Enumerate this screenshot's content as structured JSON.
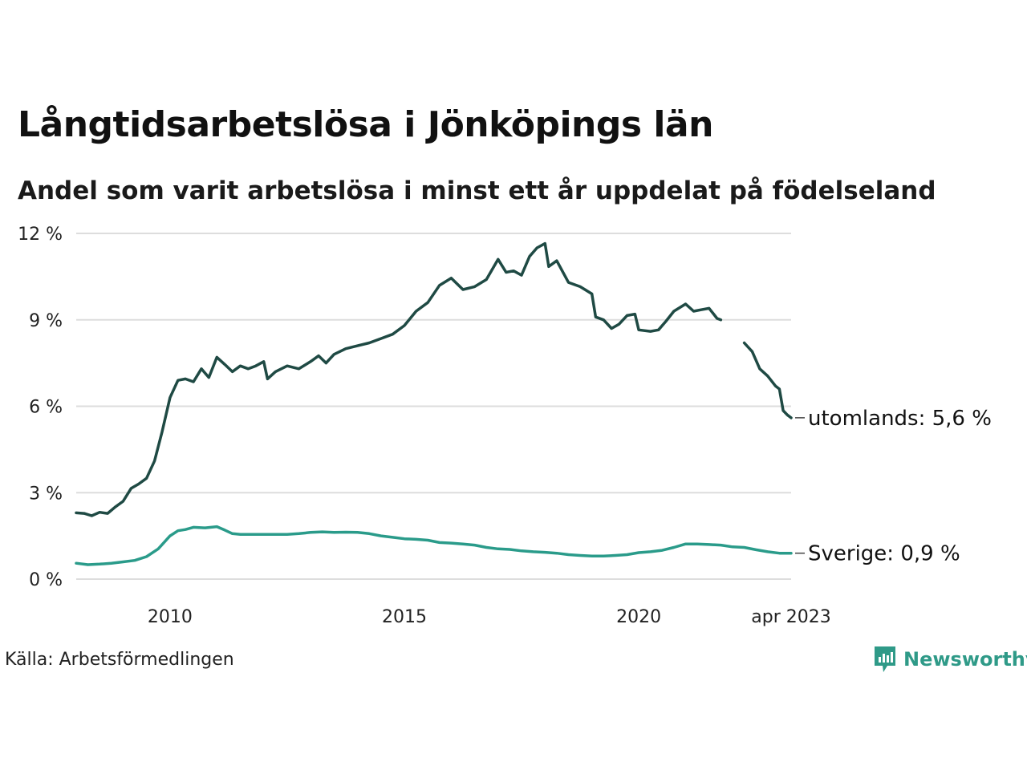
{
  "title": "Långtidsarbetslösa i Jönköpings län",
  "subtitle": "Andel som varit arbetslösa i minst ett år uppdelat på födelseland",
  "source": "Källa: Arbetsförmedlingen",
  "brand": {
    "name": "Newsworthy",
    "icon": "newsworthy-logo-icon",
    "color": "#2f9a88"
  },
  "chart_data": {
    "type": "line",
    "title": "Långtidsarbetslösa i Jönköpings län",
    "subtitle": "Andel som varit arbetslösa i minst ett år uppdelat på födelseland",
    "ylim": [
      0,
      12
    ],
    "yticks": [
      0,
      3,
      6,
      9,
      12
    ],
    "ytick_labels": [
      "0 %",
      "3 %",
      "6 %",
      "9 %",
      "12 %"
    ],
    "xlim": [
      2008.0,
      2023.25
    ],
    "xticks": [
      2010,
      2015,
      2020,
      2023.25
    ],
    "xtick_labels": [
      "2010",
      "2015",
      "2020",
      "apr 2023"
    ],
    "grid": true,
    "series": [
      {
        "name": "utomlands",
        "end_label": "utomlands: 5,6 %",
        "color": "#1f4a44",
        "points": [
          [
            2008.0,
            2.3
          ],
          [
            2008.17,
            2.28
          ],
          [
            2008.33,
            2.2
          ],
          [
            2008.5,
            2.32
          ],
          [
            2008.67,
            2.28
          ],
          [
            2008.83,
            2.5
          ],
          [
            2009.0,
            2.7
          ],
          [
            2009.17,
            3.15
          ],
          [
            2009.33,
            3.3
          ],
          [
            2009.5,
            3.5
          ],
          [
            2009.67,
            4.1
          ],
          [
            2009.83,
            5.1
          ],
          [
            2010.0,
            6.3
          ],
          [
            2010.17,
            6.9
          ],
          [
            2010.33,
            6.95
          ],
          [
            2010.5,
            6.85
          ],
          [
            2010.67,
            7.3
          ],
          [
            2010.83,
            7.0
          ],
          [
            2011.0,
            7.7
          ],
          [
            2011.17,
            7.45
          ],
          [
            2011.33,
            7.2
          ],
          [
            2011.5,
            7.4
          ],
          [
            2011.67,
            7.3
          ],
          [
            2011.83,
            7.4
          ],
          [
            2012.0,
            7.55
          ],
          [
            2012.08,
            6.95
          ],
          [
            2012.25,
            7.2
          ],
          [
            2012.5,
            7.4
          ],
          [
            2012.75,
            7.3
          ],
          [
            2013.0,
            7.55
          ],
          [
            2013.17,
            7.75
          ],
          [
            2013.33,
            7.5
          ],
          [
            2013.5,
            7.8
          ],
          [
            2013.75,
            8.0
          ],
          [
            2014.0,
            8.1
          ],
          [
            2014.25,
            8.2
          ],
          [
            2014.5,
            8.35
          ],
          [
            2014.75,
            8.5
          ],
          [
            2015.0,
            8.8
          ],
          [
            2015.25,
            9.3
          ],
          [
            2015.5,
            9.6
          ],
          [
            2015.75,
            10.2
          ],
          [
            2016.0,
            10.45
          ],
          [
            2016.25,
            10.05
          ],
          [
            2016.5,
            10.15
          ],
          [
            2016.75,
            10.4
          ],
          [
            2017.0,
            11.1
          ],
          [
            2017.17,
            10.65
          ],
          [
            2017.33,
            10.7
          ],
          [
            2017.5,
            10.55
          ],
          [
            2017.67,
            11.2
          ],
          [
            2017.83,
            11.5
          ],
          [
            2018.0,
            11.65
          ],
          [
            2018.08,
            10.85
          ],
          [
            2018.25,
            11.05
          ],
          [
            2018.5,
            10.3
          ],
          [
            2018.75,
            10.15
          ],
          [
            2019.0,
            9.9
          ],
          [
            2019.08,
            9.1
          ],
          [
            2019.25,
            9.0
          ],
          [
            2019.42,
            8.7
          ],
          [
            2019.58,
            8.85
          ],
          [
            2019.75,
            9.15
          ],
          [
            2019.92,
            9.2
          ],
          [
            2020.0,
            8.65
          ],
          [
            2020.25,
            8.6
          ],
          [
            2020.42,
            8.65
          ],
          [
            2020.58,
            8.95
          ],
          [
            2020.75,
            9.3
          ],
          [
            2021.0,
            9.55
          ],
          [
            2021.17,
            9.3
          ],
          [
            2021.33,
            9.35
          ],
          [
            2021.5,
            9.4
          ],
          [
            2021.67,
            9.05
          ],
          [
            2021.75,
            9.0
          ],
          null,
          [
            2022.25,
            8.2
          ],
          [
            2022.42,
            7.9
          ],
          [
            2022.58,
            7.3
          ],
          [
            2022.75,
            7.05
          ],
          [
            2022.92,
            6.7
          ],
          [
            2023.0,
            6.6
          ],
          [
            2023.08,
            5.85
          ],
          [
            2023.17,
            5.7
          ],
          [
            2023.25,
            5.6
          ]
        ]
      },
      {
        "name": "Sverige",
        "end_label": "Sverige: 0,9 %",
        "color": "#2a9b8a",
        "points": [
          [
            2008.0,
            0.55
          ],
          [
            2008.25,
            0.5
          ],
          [
            2008.5,
            0.52
          ],
          [
            2008.75,
            0.55
          ],
          [
            2009.0,
            0.6
          ],
          [
            2009.25,
            0.65
          ],
          [
            2009.5,
            0.78
          ],
          [
            2009.75,
            1.05
          ],
          [
            2010.0,
            1.5
          ],
          [
            2010.17,
            1.68
          ],
          [
            2010.33,
            1.72
          ],
          [
            2010.5,
            1.8
          ],
          [
            2010.75,
            1.78
          ],
          [
            2011.0,
            1.82
          ],
          [
            2011.17,
            1.7
          ],
          [
            2011.33,
            1.58
          ],
          [
            2011.5,
            1.55
          ],
          [
            2011.75,
            1.55
          ],
          [
            2012.0,
            1.55
          ],
          [
            2012.25,
            1.55
          ],
          [
            2012.5,
            1.55
          ],
          [
            2012.75,
            1.58
          ],
          [
            2013.0,
            1.62
          ],
          [
            2013.25,
            1.64
          ],
          [
            2013.5,
            1.62
          ],
          [
            2013.75,
            1.63
          ],
          [
            2014.0,
            1.62
          ],
          [
            2014.25,
            1.58
          ],
          [
            2014.5,
            1.5
          ],
          [
            2014.75,
            1.45
          ],
          [
            2015.0,
            1.4
          ],
          [
            2015.25,
            1.38
          ],
          [
            2015.5,
            1.35
          ],
          [
            2015.75,
            1.27
          ],
          [
            2016.0,
            1.25
          ],
          [
            2016.25,
            1.22
          ],
          [
            2016.5,
            1.18
          ],
          [
            2016.75,
            1.1
          ],
          [
            2017.0,
            1.05
          ],
          [
            2017.25,
            1.03
          ],
          [
            2017.5,
            0.98
          ],
          [
            2017.75,
            0.95
          ],
          [
            2018.0,
            0.93
          ],
          [
            2018.25,
            0.9
          ],
          [
            2018.5,
            0.85
          ],
          [
            2018.75,
            0.82
          ],
          [
            2019.0,
            0.8
          ],
          [
            2019.25,
            0.8
          ],
          [
            2019.5,
            0.82
          ],
          [
            2019.75,
            0.85
          ],
          [
            2020.0,
            0.92
          ],
          [
            2020.25,
            0.95
          ],
          [
            2020.5,
            1.0
          ],
          [
            2020.75,
            1.1
          ],
          [
            2021.0,
            1.22
          ],
          [
            2021.25,
            1.22
          ],
          [
            2021.5,
            1.2
          ],
          [
            2021.75,
            1.18
          ],
          [
            2022.0,
            1.12
          ],
          [
            2022.25,
            1.1
          ],
          [
            2022.5,
            1.02
          ],
          [
            2022.75,
            0.95
          ],
          [
            2023.0,
            0.9
          ],
          [
            2023.25,
            0.9
          ]
        ]
      }
    ]
  }
}
